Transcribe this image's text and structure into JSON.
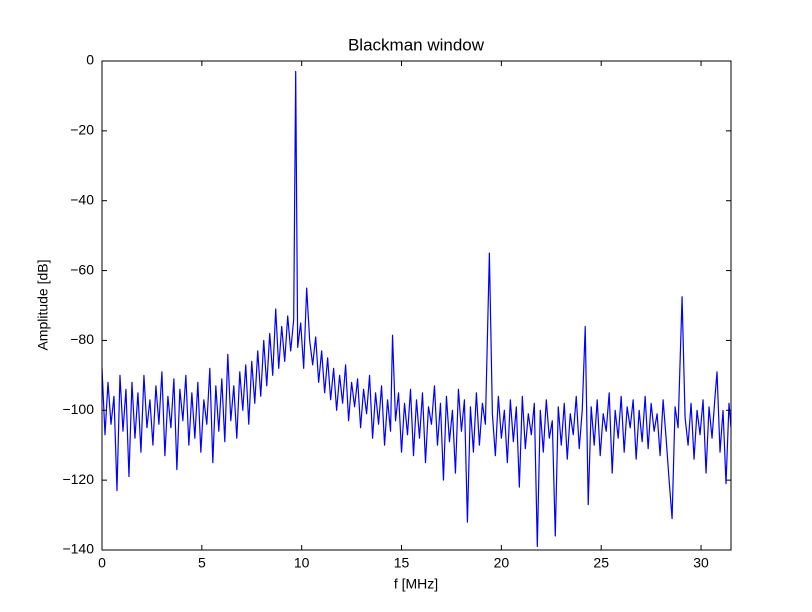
{
  "chart_data": {
    "type": "line",
    "title": "Blackman window",
    "x_label": "f [MHz]",
    "y_label": "Amplitude [dB]",
    "color": "#0000ff",
    "xlim": [
      0,
      31.5
    ],
    "ylim": [
      -140,
      0
    ],
    "xticks": [
      0,
      5,
      10,
      15,
      20,
      25,
      30
    ],
    "yticks": [
      0,
      {
        "value": -20,
        "label": "−20"
      },
      {
        "value": -40,
        "label": "−40"
      },
      {
        "value": -60,
        "label": "−60"
      },
      {
        "value": -80,
        "label": "−80"
      },
      {
        "value": -100,
        "label": "−100"
      },
      {
        "value": -120,
        "label": "−120"
      },
      {
        "value": -140,
        "label": "−140"
      }
    ],
    "grid": false,
    "x": [
      0,
      0.15,
      0.3,
      0.45,
      0.6,
      0.75,
      0.9,
      1.05,
      1.2,
      1.35,
      1.5,
      1.65,
      1.8,
      1.95,
      2.1,
      2.25,
      2.4,
      2.55,
      2.7,
      2.85,
      3.0,
      3.15,
      3.3,
      3.45,
      3.6,
      3.75,
      3.9,
      4.05,
      4.2,
      4.35,
      4.5,
      4.65,
      4.8,
      4.95,
      5.1,
      5.25,
      5.4,
      5.55,
      5.7,
      5.85,
      6.0,
      6.15,
      6.3,
      6.45,
      6.6,
      6.75,
      6.9,
      7.05,
      7.2,
      7.35,
      7.5,
      7.65,
      7.8,
      7.95,
      8.1,
      8.25,
      8.4,
      8.55,
      8.7,
      8.85,
      9.0,
      9.15,
      9.3,
      9.45,
      9.6,
      9.7,
      9.8,
      9.95,
      10.1,
      10.25,
      10.4,
      10.55,
      10.7,
      10.85,
      11.0,
      11.15,
      11.3,
      11.45,
      11.6,
      11.75,
      11.9,
      12.05,
      12.2,
      12.35,
      12.5,
      12.65,
      12.8,
      12.95,
      13.1,
      13.25,
      13.4,
      13.55,
      13.7,
      13.85,
      14.0,
      14.15,
      14.3,
      14.45,
      14.55,
      14.7,
      14.85,
      15.0,
      15.15,
      15.3,
      15.45,
      15.6,
      15.75,
      15.9,
      16.05,
      16.2,
      16.35,
      16.5,
      16.65,
      16.8,
      16.95,
      17.1,
      17.25,
      17.4,
      17.55,
      17.7,
      17.85,
      18.0,
      18.15,
      18.3,
      18.45,
      18.6,
      18.75,
      18.9,
      19.05,
      19.2,
      19.4,
      19.55,
      19.7,
      19.85,
      20.0,
      20.15,
      20.3,
      20.45,
      20.6,
      20.75,
      20.9,
      21.05,
      21.2,
      21.35,
      21.5,
      21.65,
      21.8,
      21.95,
      22.1,
      22.25,
      22.4,
      22.55,
      22.7,
      22.85,
      23.0,
      23.15,
      23.3,
      23.45,
      23.6,
      23.75,
      23.9,
      24.05,
      24.2,
      24.35,
      24.5,
      24.65,
      24.8,
      24.95,
      25.1,
      25.25,
      25.4,
      25.55,
      25.7,
      25.85,
      26.0,
      26.15,
      26.3,
      26.45,
      26.6,
      26.75,
      26.9,
      27.05,
      27.2,
      27.35,
      27.5,
      27.65,
      27.8,
      27.95,
      28.1,
      28.25,
      28.4,
      28.55,
      28.7,
      28.85,
      29.05,
      29.2,
      29.35,
      29.5,
      29.65,
      29.8,
      29.95,
      30.1,
      30.25,
      30.4,
      30.55,
      30.7,
      30.8,
      30.95,
      31.1,
      31.25,
      31.4,
      31.5
    ],
    "values": [
      -88,
      -107,
      -92,
      -104,
      -96,
      -123,
      -90,
      -106,
      -94,
      -119,
      -92,
      -108,
      -95,
      -112,
      -90,
      -105,
      -97,
      -110,
      -93,
      -104,
      -89,
      -113,
      -96,
      -105,
      -91,
      -117,
      -94,
      -103,
      -90,
      -110,
      -95,
      -108,
      -92,
      -112,
      -97,
      -104,
      -88,
      -115,
      -93,
      -106,
      -91,
      -109,
      -84,
      -103,
      -93,
      -108,
      -89,
      -100,
      -87,
      -104,
      -86,
      -98,
      -83,
      -96,
      -80,
      -93,
      -78,
      -90,
      -71,
      -88,
      -76,
      -86,
      -73,
      -83,
      -74,
      -3,
      -82,
      -75,
      -88,
      -65,
      -80,
      -87,
      -79,
      -92,
      -83,
      -95,
      -85,
      -97,
      -88,
      -100,
      -90,
      -98,
      -87,
      -103,
      -92,
      -99,
      -91,
      -105,
      -94,
      -101,
      -90,
      -108,
      -95,
      -104,
      -93,
      -110,
      -97,
      -106,
      -78.5,
      -103,
      -95,
      -112,
      -98,
      -107,
      -94,
      -113,
      -97,
      -108,
      -95,
      -115,
      -99,
      -104,
      -93,
      -110,
      -98,
      -120,
      -96,
      -109,
      -100,
      -118,
      -94,
      -106,
      -97,
      -132,
      -99,
      -112,
      -95,
      -110,
      -98,
      -104,
      -55,
      -101,
      -113,
      -96,
      -108,
      -100,
      -115,
      -97,
      -109,
      -99,
      -122,
      -96,
      -111,
      -101,
      -107,
      -98,
      -139,
      -100,
      -112,
      -97,
      -108,
      -103,
      -136,
      -99,
      -110,
      -98,
      -114,
      -101,
      -107,
      -96,
      -111,
      -100,
      -76,
      -127,
      -99,
      -110,
      -97,
      -113,
      -101,
      -106,
      -95,
      -118,
      -100,
      -108,
      -96,
      -112,
      -99,
      -105,
      -97,
      -114,
      -100,
      -109,
      -96,
      -111,
      -98,
      -106,
      -101,
      -113,
      -97,
      -108,
      -120,
      -131,
      -99,
      -105,
      -67.5,
      -102,
      -110,
      -98,
      -114,
      -100,
      -107,
      -97,
      -118,
      -99,
      -108,
      -96,
      -89,
      -112,
      -100,
      -121,
      -98,
      -105
    ]
  }
}
